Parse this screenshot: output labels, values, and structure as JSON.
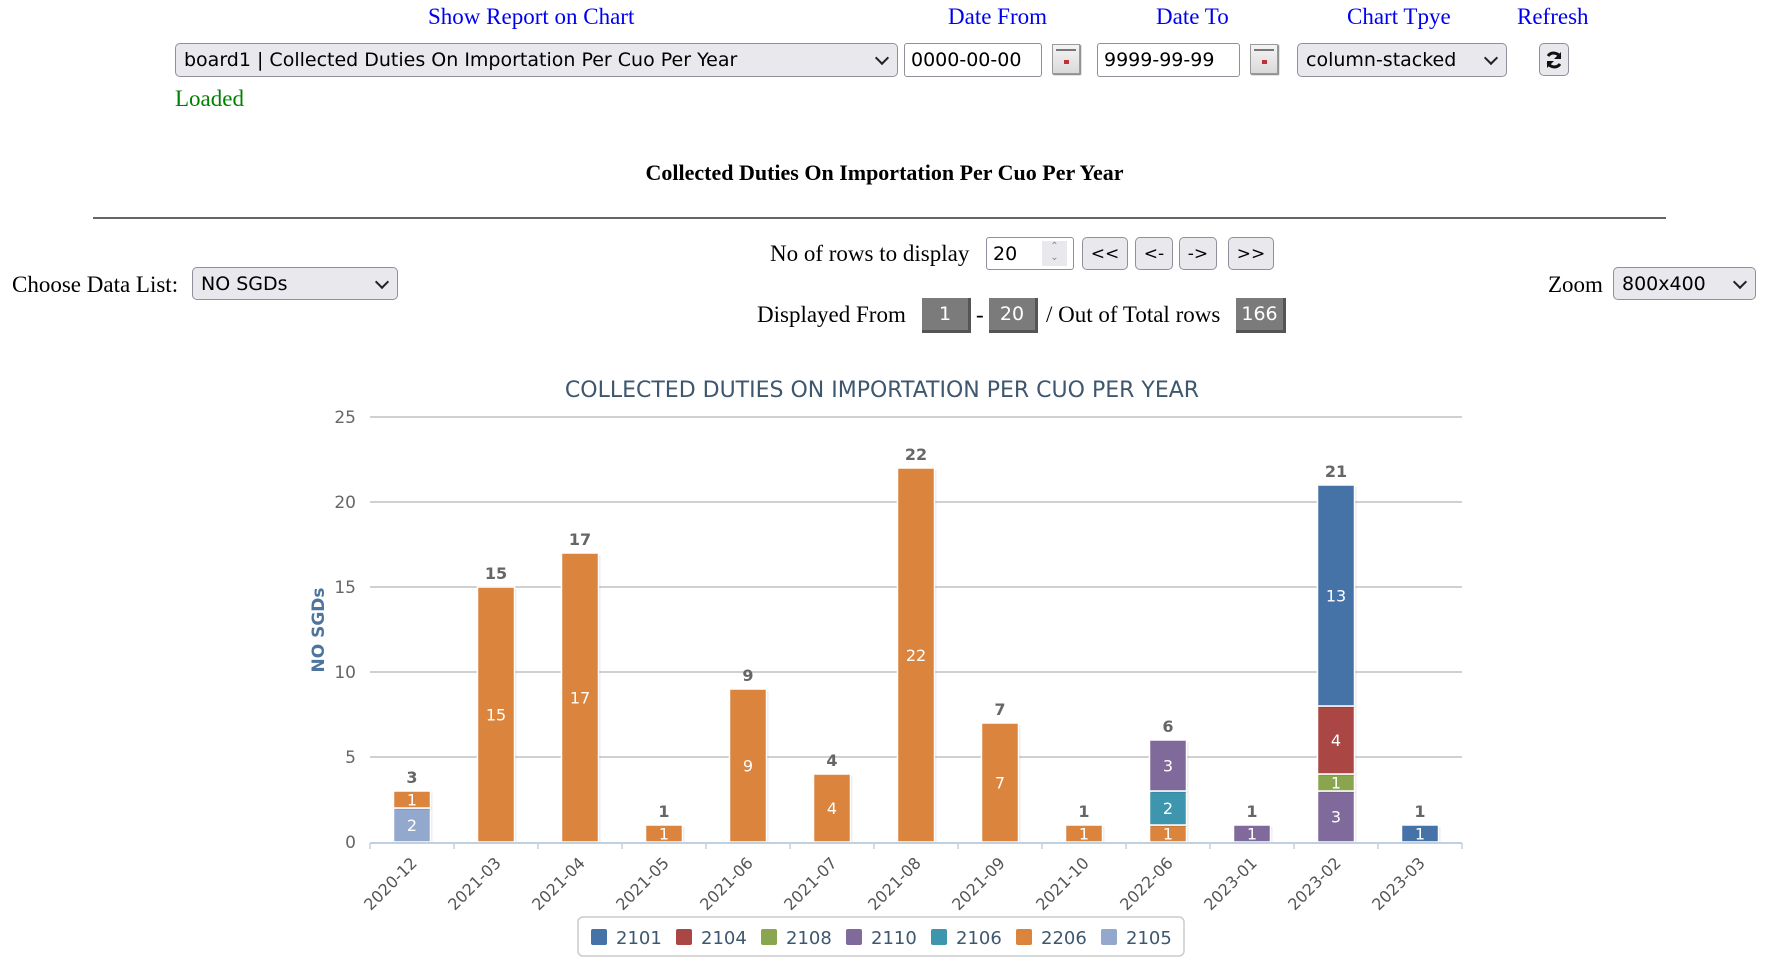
{
  "header": {
    "show_report_label": "Show Report on Chart",
    "report_select_value": "board1 | Collected Duties On Importation Per Cuo Per Year",
    "date_from_label": "Date From",
    "date_from_value": "0000-00-00",
    "date_to_label": "Date To",
    "date_to_value": "9999-99-99",
    "chart_type_label": "Chart Tpye",
    "chart_type_value": "column-stacked",
    "refresh_label": "Refresh",
    "status": "Loaded",
    "status_color": "#008000",
    "label_color": "#0000ee"
  },
  "report_title": "Collected Duties On Importation Per Cuo Per Year",
  "controls": {
    "data_list_label": "Choose Data List:",
    "data_list_value": "NO SGDs",
    "rows_label": "No of rows to display",
    "rows_value": "20",
    "first_button": "<<",
    "prev_button": "<-",
    "next_button": "->",
    "last_button": ">>",
    "displayed_from_label": "Displayed From",
    "from_value": "1",
    "dash": "-",
    "to_value": "20",
    "out_of_label": "/ Out of Total rows",
    "total_rows": "166",
    "zoom_label": "Zoom",
    "zoom_value": "800x400"
  },
  "icons": {
    "refresh": "refresh-icon",
    "calendar": "calendar-icon",
    "dropdown": "chevron-down-icon",
    "spinner": "spinner-icon"
  },
  "chart_data": {
    "type": "bar",
    "stacked": true,
    "title": "COLLECTED DUTIES ON IMPORTATION PER CUO PER YEAR",
    "xlabel": "",
    "ylabel": "NO SGDs",
    "ylim": [
      0,
      25
    ],
    "yticks": [
      0,
      5,
      10,
      15,
      20,
      25
    ],
    "grid": true,
    "legend_position": "bottom",
    "categories": [
      "2020-12",
      "2021-03",
      "2021-04",
      "2021-05",
      "2021-06",
      "2021-07",
      "2021-08",
      "2021-09",
      "2021-10",
      "2022-06",
      "2023-01",
      "2023-02",
      "2023-03"
    ],
    "series": [
      {
        "name": "2101",
        "color": "#4572a7",
        "values": [
          0,
          0,
          0,
          0,
          0,
          0,
          0,
          0,
          0,
          0,
          0,
          13,
          1
        ]
      },
      {
        "name": "2104",
        "color": "#aa4643",
        "values": [
          0,
          0,
          0,
          0,
          0,
          0,
          0,
          0,
          0,
          0,
          0,
          4,
          0
        ]
      },
      {
        "name": "2108",
        "color": "#89a54e",
        "values": [
          0,
          0,
          0,
          0,
          0,
          0,
          0,
          0,
          0,
          0,
          0,
          1,
          0
        ]
      },
      {
        "name": "2110",
        "color": "#80699b",
        "values": [
          0,
          0,
          0,
          0,
          0,
          0,
          0,
          0,
          0,
          3,
          1,
          3,
          0
        ]
      },
      {
        "name": "2106",
        "color": "#3d96ae",
        "values": [
          0,
          0,
          0,
          0,
          0,
          0,
          0,
          0,
          0,
          2,
          0,
          0,
          0
        ]
      },
      {
        "name": "2206",
        "color": "#db843d",
        "values": [
          1,
          15,
          17,
          1,
          9,
          4,
          22,
          7,
          1,
          1,
          0,
          0,
          0
        ]
      },
      {
        "name": "2105",
        "color": "#92a8cd",
        "values": [
          2,
          0,
          0,
          0,
          0,
          0,
          0,
          0,
          0,
          0,
          0,
          0,
          0
        ]
      }
    ],
    "totals": [
      3,
      15,
      17,
      1,
      9,
      4,
      22,
      7,
      1,
      6,
      1,
      21,
      1
    ]
  }
}
